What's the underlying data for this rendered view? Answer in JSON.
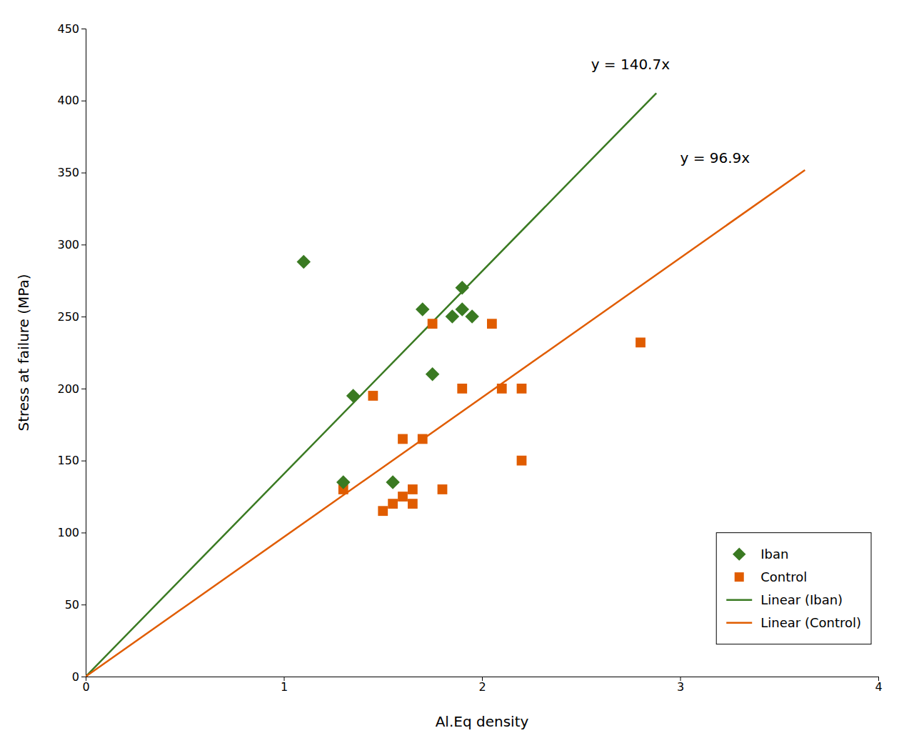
{
  "chart_data": {
    "type": "scatter",
    "xlabel": "Al.Eq density",
    "ylabel": "Stress at failure (MPa)",
    "xlim": [
      0,
      4
    ],
    "ylim": [
      0,
      450
    ],
    "xticks": [
      0,
      1,
      2,
      3,
      4
    ],
    "yticks": [
      0,
      50,
      100,
      150,
      200,
      250,
      300,
      350,
      400,
      450
    ],
    "grid": false,
    "legend": "lower right",
    "series": [
      {
        "name": "Iban",
        "type": "scatter",
        "marker": "diamond",
        "color": "#3a7a22",
        "x": [
          1.1,
          1.3,
          1.35,
          1.55,
          1.7,
          1.75,
          1.85,
          1.9,
          1.9,
          1.95
        ],
        "values": [
          288,
          135,
          195,
          135,
          255,
          210,
          250,
          255,
          270,
          250
        ]
      },
      {
        "name": "Control",
        "type": "scatter",
        "marker": "square",
        "color": "#e05c00",
        "x": [
          1.3,
          1.45,
          1.5,
          1.55,
          1.6,
          1.6,
          1.65,
          1.65,
          1.7,
          1.75,
          1.8,
          1.9,
          2.05,
          2.1,
          2.2,
          2.2,
          2.8
        ],
        "values": [
          130,
          195,
          115,
          120,
          165,
          125,
          120,
          130,
          165,
          245,
          130,
          200,
          245,
          200,
          150,
          200,
          232
        ]
      },
      {
        "name": "Linear (Iban)",
        "type": "line",
        "line_style": "solid",
        "color": "#3a7a22",
        "x": [
          0,
          2.88
        ],
        "values": [
          0,
          405.216
        ]
      },
      {
        "name": "Linear (Control)",
        "type": "line",
        "line_style": "solid",
        "color": "#e05c00",
        "x": [
          0,
          3.63
        ],
        "values": [
          0,
          351.747
        ]
      }
    ],
    "annotations": [
      {
        "text": "y = 140.7x",
        "x": 2.55,
        "y": 425,
        "color": "#000000"
      },
      {
        "text": "y = 96.9x",
        "x": 3.0,
        "y": 360,
        "color": "#000000"
      }
    ]
  }
}
